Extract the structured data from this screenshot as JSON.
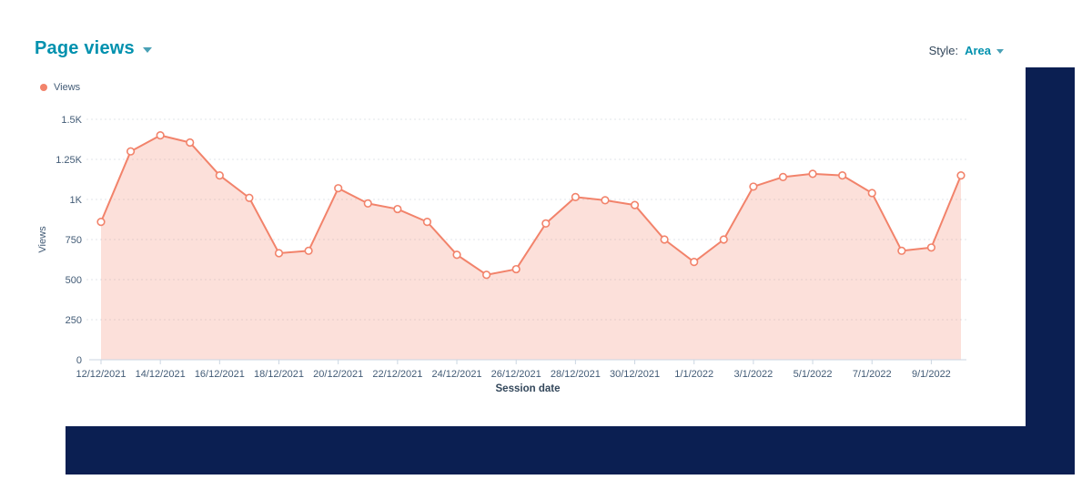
{
  "header": {
    "title": "Page views",
    "style_label": "Style:",
    "style_value": "Area"
  },
  "legend": {
    "items": [
      {
        "label": "Views",
        "color": "#f2836b"
      }
    ]
  },
  "colors": {
    "navy_block": "#0b1f52",
    "teal": "#0091ae",
    "line": "#f2836b",
    "area_fill": "rgba(242,131,106,0.25)",
    "marker_fill": "#ffffff",
    "axis_text": "#425b76",
    "axis_title_text": "#33475b",
    "axis_line": "#cbd6e2",
    "grid_line": "#e0e4ea"
  },
  "chart_data": {
    "type": "area",
    "title": "Page views",
    "xlabel": "Session date",
    "ylabel": "Views",
    "x": [
      "12/12/2021",
      "13/12/2021",
      "14/12/2021",
      "15/12/2021",
      "16/12/2021",
      "17/12/2021",
      "18/12/2021",
      "19/12/2021",
      "20/12/2021",
      "21/12/2021",
      "22/12/2021",
      "23/12/2021",
      "24/12/2021",
      "25/12/2021",
      "26/12/2021",
      "27/12/2021",
      "28/12/2021",
      "29/12/2021",
      "30/12/2021",
      "31/12/2021",
      "1/1/2022",
      "2/1/2022",
      "3/1/2022",
      "4/1/2022",
      "5/1/2022",
      "6/1/2022",
      "7/1/2022",
      "8/1/2022",
      "9/1/2022",
      "10/1/2022"
    ],
    "series": [
      {
        "name": "Views",
        "values": [
          860,
          1300,
          1400,
          1355,
          1150,
          1010,
          665,
          680,
          1070,
          975,
          940,
          860,
          655,
          530,
          565,
          850,
          1015,
          995,
          965,
          750,
          610,
          750,
          1080,
          1140,
          1160,
          1150,
          1040,
          680,
          700,
          1150
        ]
      }
    ],
    "ylim": [
      0,
      1500
    ],
    "yticks": [
      0,
      250,
      500,
      750,
      1000,
      1250,
      1500
    ],
    "ytick_labels": [
      "0",
      "250",
      "500",
      "750",
      "1K",
      "1.25K",
      "1.5K"
    ],
    "xtick_every": 2,
    "grid": "horizontal-dotted",
    "legend_position": "top-left",
    "markers": true
  }
}
